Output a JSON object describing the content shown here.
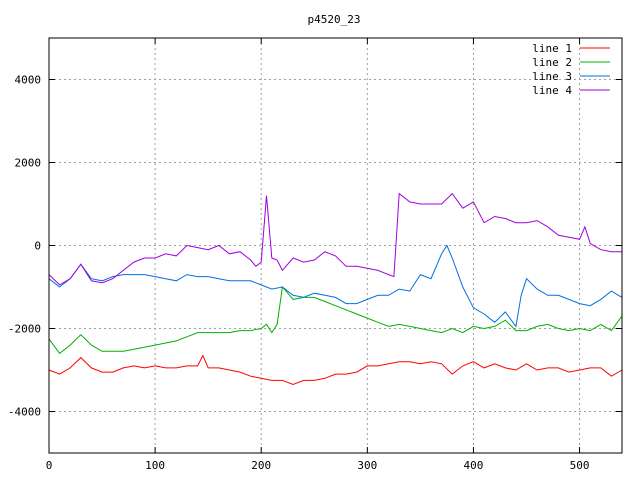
{
  "chart_data": {
    "type": "line",
    "title": "p4520_23",
    "xlabel": "",
    "ylabel": "",
    "xlim": [
      0,
      540
    ],
    "ylim": [
      -5000,
      5000
    ],
    "x_ticks": [
      0,
      100,
      200,
      300,
      400,
      500
    ],
    "y_ticks": [
      -4000,
      -2000,
      0,
      2000,
      4000
    ],
    "grid": true,
    "legend_position": "top-right",
    "series": [
      {
        "name": "line 1",
        "color": "#ff0000",
        "x": [
          0,
          10,
          20,
          30,
          40,
          50,
          60,
          70,
          80,
          90,
          100,
          110,
          120,
          130,
          140,
          145,
          150,
          160,
          170,
          180,
          190,
          200,
          210,
          220,
          230,
          240,
          250,
          260,
          270,
          280,
          290,
          300,
          310,
          320,
          330,
          340,
          350,
          360,
          370,
          380,
          390,
          400,
          410,
          420,
          430,
          440,
          450,
          460,
          470,
          480,
          490,
          500,
          510,
          520,
          530,
          540
        ],
        "values": [
          -3000,
          -3100,
          -2950,
          -2700,
          -2950,
          -3050,
          -3050,
          -2950,
          -2900,
          -2950,
          -2900,
          -2950,
          -2950,
          -2900,
          -2900,
          -2650,
          -2950,
          -2950,
          -3000,
          -3050,
          -3150,
          -3200,
          -3250,
          -3250,
          -3350,
          -3250,
          -3250,
          -3200,
          -3100,
          -3100,
          -3050,
          -2900,
          -2900,
          -2850,
          -2800,
          -2800,
          -2850,
          -2800,
          -2850,
          -3100,
          -2900,
          -2800,
          -2950,
          -2850,
          -2950,
          -3000,
          -2850,
          -3000,
          -2950,
          -2950,
          -3050,
          -3000,
          -2950,
          -2950,
          -3150,
          -3000
        ]
      },
      {
        "name": "line 2",
        "color": "#00b000",
        "x": [
          0,
          10,
          20,
          30,
          40,
          50,
          60,
          70,
          80,
          90,
          100,
          110,
          120,
          130,
          140,
          150,
          160,
          170,
          180,
          190,
          200,
          205,
          210,
          215,
          220,
          225,
          230,
          240,
          250,
          260,
          270,
          280,
          290,
          300,
          310,
          320,
          330,
          340,
          350,
          360,
          370,
          380,
          390,
          400,
          410,
          420,
          430,
          440,
          450,
          460,
          470,
          480,
          490,
          500,
          510,
          520,
          530,
          540
        ],
        "values": [
          -2250,
          -2600,
          -2400,
          -2150,
          -2400,
          -2550,
          -2550,
          -2550,
          -2500,
          -2450,
          -2400,
          -2350,
          -2300,
          -2200,
          -2100,
          -2100,
          -2100,
          -2100,
          -2050,
          -2050,
          -2000,
          -1900,
          -2100,
          -1900,
          -1000,
          -1150,
          -1300,
          -1250,
          -1250,
          -1350,
          -1450,
          -1550,
          -1650,
          -1750,
          -1850,
          -1950,
          -1900,
          -1950,
          -2000,
          -2050,
          -2100,
          -2000,
          -2100,
          -1950,
          -2000,
          -1950,
          -1800,
          -2050,
          -2050,
          -1950,
          -1900,
          -2000,
          -2050,
          -2000,
          -2050,
          -1900,
          -2050,
          -1700
        ]
      },
      {
        "name": "line 3",
        "color": "#0070e0",
        "x": [
          0,
          10,
          20,
          30,
          40,
          50,
          60,
          70,
          80,
          90,
          100,
          110,
          120,
          130,
          140,
          150,
          160,
          170,
          180,
          190,
          200,
          210,
          220,
          230,
          240,
          250,
          260,
          270,
          280,
          290,
          300,
          310,
          320,
          330,
          340,
          350,
          360,
          370,
          375,
          380,
          390,
          400,
          410,
          420,
          430,
          440,
          445,
          450,
          460,
          470,
          480,
          490,
          500,
          510,
          520,
          530,
          540
        ],
        "values": [
          -800,
          -1000,
          -800,
          -450,
          -800,
          -850,
          -750,
          -700,
          -700,
          -700,
          -750,
          -800,
          -850,
          -700,
          -750,
          -750,
          -800,
          -850,
          -850,
          -850,
          -950,
          -1050,
          -1000,
          -1200,
          -1250,
          -1150,
          -1200,
          -1250,
          -1400,
          -1400,
          -1300,
          -1200,
          -1200,
          -1050,
          -1100,
          -700,
          -800,
          -200,
          0,
          -300,
          -1000,
          -1500,
          -1650,
          -1850,
          -1600,
          -1950,
          -1200,
          -800,
          -1050,
          -1200,
          -1200,
          -1300,
          -1400,
          -1450,
          -1300,
          -1100,
          -1250
        ]
      },
      {
        "name": "line 4",
        "color": "#a000e0",
        "x": [
          0,
          10,
          20,
          30,
          40,
          50,
          60,
          70,
          80,
          90,
          100,
          110,
          120,
          130,
          140,
          150,
          160,
          170,
          180,
          190,
          195,
          200,
          205,
          210,
          215,
          220,
          230,
          240,
          250,
          260,
          270,
          280,
          290,
          300,
          310,
          320,
          325,
          330,
          340,
          350,
          360,
          370,
          380,
          390,
          400,
          410,
          420,
          430,
          440,
          450,
          460,
          470,
          480,
          490,
          500,
          505,
          510,
          520,
          530,
          540
        ],
        "values": [
          -700,
          -950,
          -800,
          -450,
          -850,
          -900,
          -800,
          -600,
          -400,
          -300,
          -300,
          -200,
          -250,
          0,
          -50,
          -100,
          0,
          -200,
          -150,
          -350,
          -500,
          -400,
          1200,
          -300,
          -350,
          -600,
          -300,
          -400,
          -350,
          -150,
          -250,
          -500,
          -500,
          -550,
          -600,
          -700,
          -750,
          1250,
          1050,
          1000,
          1000,
          1000,
          1250,
          900,
          1050,
          550,
          700,
          650,
          550,
          550,
          600,
          450,
          250,
          200,
          150,
          450,
          50,
          -100,
          -150,
          -150
        ]
      }
    ]
  }
}
